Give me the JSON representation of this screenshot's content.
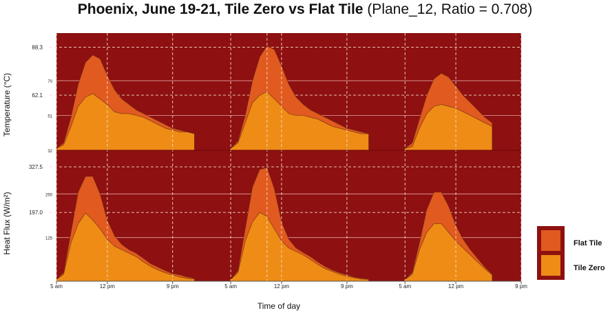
{
  "title": {
    "bold": "Phoenix, June 19-21, Tile Zero vs Flat Tile",
    "normal": "(Plane_12, Ratio = 0.708)"
  },
  "colors": {
    "background": "#8e1010",
    "flat_tile": "#e15a1f",
    "tile_zero": "#ee8c16",
    "grid": "#e8a3a3",
    "guide": "#f3d9c9"
  },
  "legend": {
    "flat": "Flat Tile",
    "zero": "Tile Zero"
  },
  "xlabel": "Time of day",
  "chart_data": [
    {
      "type": "area",
      "ylabel": "Temperature (°C)",
      "ylim": [
        32,
        96
      ],
      "yticks": [
        {
          "value": 32,
          "label": "32"
        },
        {
          "value": 51,
          "label": "51"
        },
        {
          "value": 62.1,
          "label": "62.1"
        },
        {
          "value": 70,
          "label": "70"
        },
        {
          "value": 88.3,
          "label": "88.3"
        }
      ],
      "guide_values": [
        62.1,
        88.3
      ],
      "x_hours": [
        5,
        6,
        7,
        8,
        9,
        10,
        11,
        12,
        13,
        14,
        15,
        16,
        17,
        18,
        19,
        20,
        21,
        22,
        23,
        24,
        29,
        30,
        31,
        32,
        33,
        34,
        35,
        36,
        37,
        38,
        39,
        40,
        41,
        42,
        43,
        44,
        45,
        46,
        47,
        48,
        53,
        54,
        55,
        56,
        57,
        58,
        59,
        60,
        61,
        62,
        63,
        64,
        65,
        66,
        67,
        68,
        69
      ],
      "series": [
        {
          "name": "Flat Tile",
          "values": [
            33,
            36,
            50,
            68,
            80,
            84,
            82,
            73,
            65,
            60,
            57,
            54,
            52,
            50,
            48,
            46,
            44,
            43,
            42,
            41,
            33,
            37,
            51,
            70,
            83,
            89,
            87,
            78,
            68,
            61,
            57,
            54,
            52,
            50,
            48,
            46,
            44,
            43,
            42,
            41,
            33,
            36,
            49,
            62,
            71,
            74,
            72,
            67,
            62,
            58,
            54,
            50,
            47
          ]
        },
        {
          "name": "Tile Zero",
          "values": [
            33,
            35,
            45,
            56,
            61,
            63,
            60,
            57,
            53,
            52,
            52,
            51,
            50,
            48,
            46,
            44,
            43,
            42,
            42,
            41,
            33,
            36,
            47,
            58,
            62,
            64,
            60,
            56,
            52,
            51,
            51,
            50,
            49,
            47,
            45,
            44,
            43,
            42,
            41,
            41,
            33,
            34,
            44,
            52,
            56,
            57,
            56,
            55,
            53,
            51,
            49,
            47,
            45
          ]
        }
      ]
    },
    {
      "type": "area",
      "ylabel": "Heat Flux (W/m²)",
      "ylim": [
        0,
        375
      ],
      "yticks": [
        {
          "value": 125,
          "label": "125"
        },
        {
          "value": 197,
          "label": "197.0"
        },
        {
          "value": 250,
          "label": "250"
        },
        {
          "value": 327.5,
          "label": "327.5"
        }
      ],
      "guide_values": [
        197,
        327.5
      ],
      "x_hours": [
        5,
        6,
        7,
        8,
        9,
        10,
        11,
        12,
        13,
        14,
        15,
        16,
        17,
        18,
        19,
        20,
        21,
        22,
        23,
        24,
        29,
        30,
        31,
        32,
        33,
        34,
        35,
        36,
        37,
        38,
        39,
        40,
        41,
        42,
        43,
        44,
        45,
        46,
        47,
        48,
        53,
        54,
        55,
        56,
        57,
        58,
        59,
        60,
        61,
        62,
        63,
        64,
        65,
        66,
        67,
        68,
        69
      ],
      "series": [
        {
          "name": "Flat Tile",
          "values": [
            5,
            25,
            140,
            255,
            300,
            300,
            250,
            175,
            130,
            105,
            90,
            80,
            65,
            50,
            40,
            30,
            22,
            18,
            12,
            8,
            5,
            30,
            150,
            270,
            320,
            325,
            265,
            170,
            120,
            95,
            82,
            70,
            55,
            42,
            32,
            24,
            18,
            12,
            8,
            6,
            5,
            25,
            110,
            205,
            255,
            255,
            215,
            160,
            120,
            90,
            65,
            40,
            20
          ]
        },
        {
          "name": "Tile Zero",
          "values": [
            5,
            20,
            110,
            165,
            195,
            175,
            150,
            120,
            100,
            90,
            80,
            70,
            55,
            42,
            32,
            24,
            18,
            12,
            8,
            6,
            5,
            25,
            115,
            170,
            197,
            185,
            150,
            115,
            95,
            85,
            75,
            62,
            48,
            36,
            28,
            20,
            14,
            10,
            6,
            5,
            5,
            20,
            90,
            140,
            165,
            165,
            140,
            115,
            95,
            75,
            55,
            35,
            18
          ]
        }
      ]
    }
  ],
  "x_axis": {
    "tick_hours": [
      5,
      12,
      21,
      29,
      36,
      45,
      53,
      60,
      69
    ],
    "tick_labels": [
      "5 am",
      "12 pm",
      "9 pm",
      "5 am",
      "12 pm",
      "9 pm",
      "5 am",
      "12 pm",
      "9 pm"
    ],
    "dashed_guides_hours": [
      5,
      12,
      21,
      29,
      34,
      36,
      45,
      53,
      60,
      69
    ],
    "range": [
      5,
      69
    ]
  }
}
